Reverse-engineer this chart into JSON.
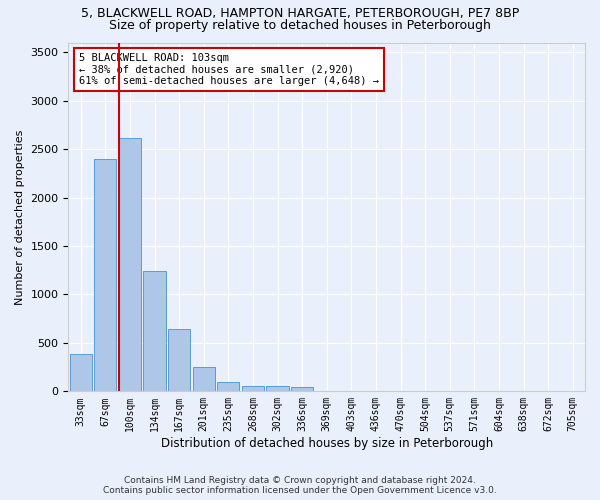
{
  "title_line1": "5, BLACKWELL ROAD, HAMPTON HARGATE, PETERBOROUGH, PE7 8BP",
  "title_line2": "Size of property relative to detached houses in Peterborough",
  "xlabel": "Distribution of detached houses by size in Peterborough",
  "ylabel": "Number of detached properties",
  "footnote1": "Contains HM Land Registry data © Crown copyright and database right 2024.",
  "footnote2": "Contains public sector information licensed under the Open Government Licence v3.0.",
  "annotation_line1": "5 BLACKWELL ROAD: 103sqm",
  "annotation_line2": "← 38% of detached houses are smaller (2,920)",
  "annotation_line3": "61% of semi-detached houses are larger (4,648) →",
  "categories": [
    "33sqm",
    "67sqm",
    "100sqm",
    "134sqm",
    "167sqm",
    "201sqm",
    "235sqm",
    "268sqm",
    "302sqm",
    "336sqm",
    "369sqm",
    "403sqm",
    "436sqm",
    "470sqm",
    "504sqm",
    "537sqm",
    "571sqm",
    "604sqm",
    "638sqm",
    "672sqm",
    "705sqm"
  ],
  "values": [
    390,
    2400,
    2610,
    1240,
    640,
    255,
    95,
    60,
    55,
    40,
    0,
    0,
    0,
    0,
    0,
    0,
    0,
    0,
    0,
    0,
    0
  ],
  "bar_color": "#aec6e8",
  "bar_edge_color": "#5b9bd5",
  "vline_color": "#cc0000",
  "annotation_box_color": "#cc0000",
  "ylim": [
    0,
    3600
  ],
  "yticks": [
    0,
    500,
    1000,
    1500,
    2000,
    2500,
    3000,
    3500
  ],
  "bg_color": "#eaf0fb",
  "grid_color": "#ffffff",
  "title1_fontsize": 9,
  "title2_fontsize": 9
}
